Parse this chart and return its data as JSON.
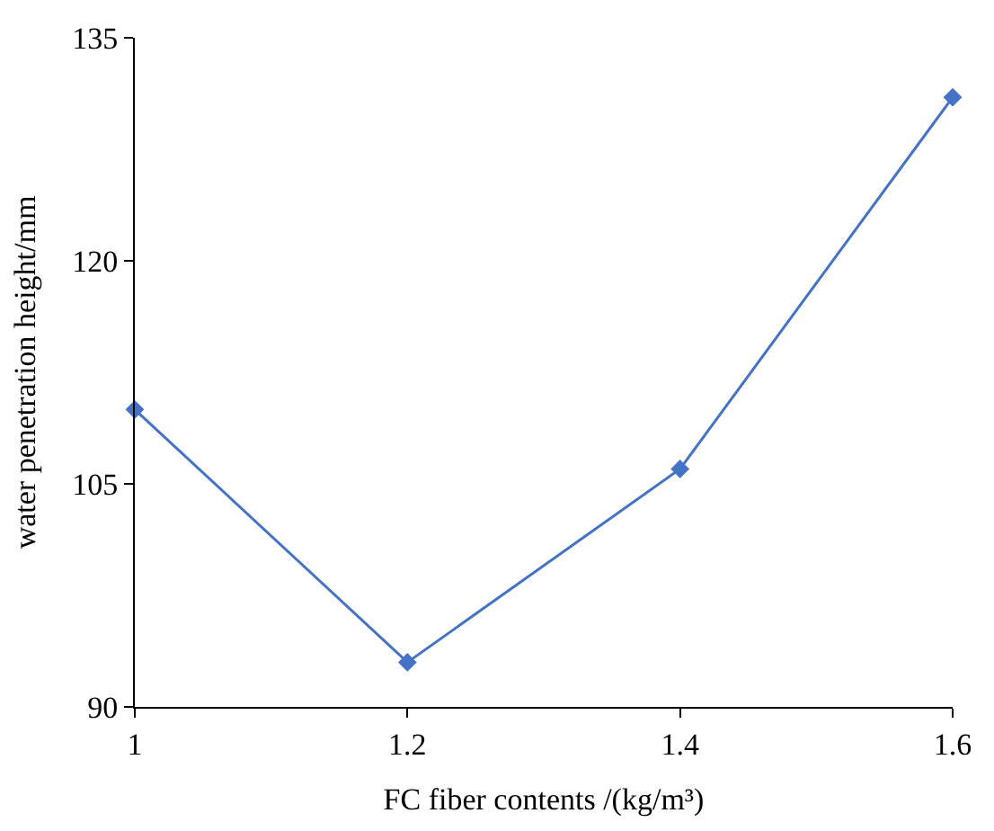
{
  "chart_data": {
    "type": "line",
    "xlabel": "FC fiber contents /(kg/m³)",
    "ylabel": "water penetration height/mm",
    "x": [
      1,
      1.2,
      1.4,
      1.6
    ],
    "series": [
      {
        "color": "#4472c4",
        "values": [
          110,
          93,
          106,
          131
        ]
      }
    ],
    "xlim": [
      1,
      1.6
    ],
    "xticks": [
      1,
      1.2,
      1.4,
      1.6
    ],
    "ylim": [
      90,
      135
    ],
    "yticks": [
      90,
      105,
      120,
      135
    ],
    "legend": false,
    "marker": "diamond",
    "line_style": "solid"
  }
}
